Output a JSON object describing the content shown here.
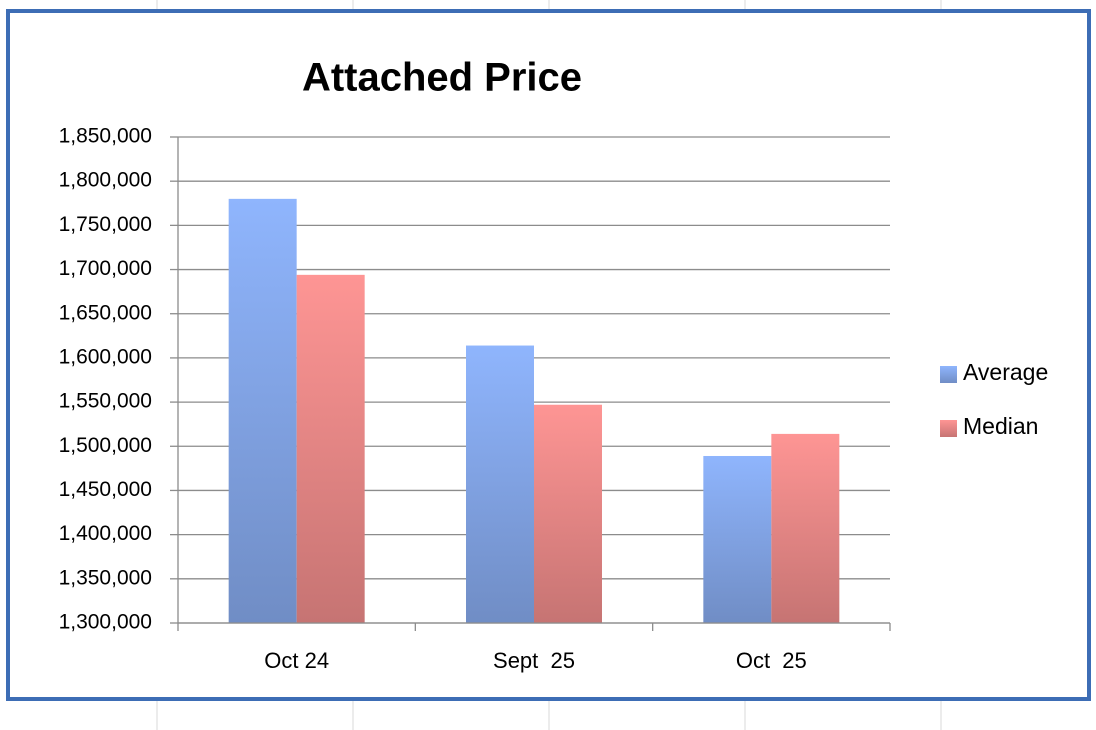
{
  "chart_data": {
    "type": "bar",
    "title": "Attached Price",
    "categories": [
      "Oct 24",
      "Sept  25",
      "Oct  25"
    ],
    "series": [
      {
        "name": "Average",
        "color": "#8fb5fd",
        "values": [
          1780000,
          1614000,
          1489000
        ]
      },
      {
        "name": "Median",
        "color": "#fe9594",
        "values": [
          1694000,
          1547000,
          1514000
        ]
      }
    ],
    "ylim": [
      1300000,
      1850000
    ],
    "yticks": [
      {
        "value": 1300000,
        "label": "1,300,000"
      },
      {
        "value": 1350000,
        "label": "1,350,000"
      },
      {
        "value": 1400000,
        "label": "1,400,000"
      },
      {
        "value": 1450000,
        "label": "1,450,000"
      },
      {
        "value": 1500000,
        "label": "1,500,000"
      },
      {
        "value": 1550000,
        "label": "1,550,000"
      },
      {
        "value": 1600000,
        "label": "1,600,000"
      },
      {
        "value": 1650000,
        "label": "1,650,000"
      },
      {
        "value": 1700000,
        "label": "1,700,000"
      },
      {
        "value": 1750000,
        "label": "1,750,000"
      },
      {
        "value": 1800000,
        "label": "1,800,000"
      },
      {
        "value": 1850000,
        "label": "1,850,000"
      }
    ],
    "grid": true,
    "legend": "right"
  }
}
